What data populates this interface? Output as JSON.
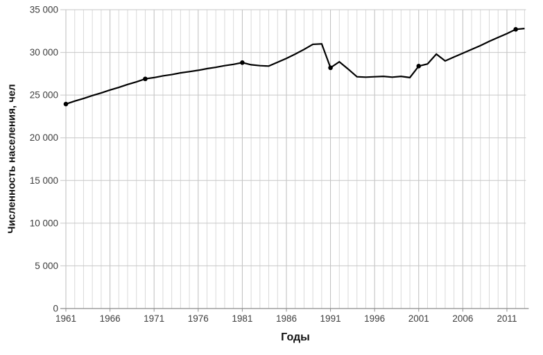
{
  "chart_data": {
    "type": "line",
    "title": "",
    "xlabel": "Годы",
    "ylabel": "Численность населения, чел",
    "xlim": [
      1961,
      2013
    ],
    "ylim": [
      0,
      35000
    ],
    "grid": true,
    "legend": "none",
    "x_ticks": [
      1961,
      1966,
      1971,
      1976,
      1981,
      1986,
      1991,
      1996,
      2001,
      2006,
      2011
    ],
    "y_ticks": [
      0,
      5000,
      10000,
      15000,
      20000,
      25000,
      30000,
      35000
    ],
    "y_tick_labels": [
      "0",
      "5 000",
      "10 000",
      "15 000",
      "20 000",
      "25 000",
      "30 000",
      "35 000"
    ],
    "series": [
      {
        "name": "Численность населения",
        "x": [
          1961,
          1962,
          1963,
          1964,
          1965,
          1966,
          1967,
          1968,
          1969,
          1970,
          1971,
          1972,
          1973,
          1974,
          1975,
          1976,
          1977,
          1978,
          1979,
          1980,
          1981,
          1982,
          1983,
          1984,
          1985,
          1986,
          1987,
          1988,
          1989,
          1990,
          1991,
          1992,
          1993,
          1994,
          1995,
          1996,
          1997,
          1998,
          1999,
          2000,
          2001,
          2002,
          2003,
          2004,
          2005,
          2006,
          2007,
          2008,
          2009,
          2010,
          2011,
          2012,
          2013
        ],
        "y": [
          23950,
          24300,
          24600,
          24950,
          25250,
          25600,
          25900,
          26250,
          26550,
          26900,
          27050,
          27250,
          27400,
          27600,
          27750,
          27900,
          28100,
          28250,
          28450,
          28600,
          28800,
          28550,
          28450,
          28400,
          28850,
          29300,
          29800,
          30350,
          30950,
          31000,
          28200,
          28900,
          28050,
          27150,
          27100,
          27150,
          27200,
          27100,
          27200,
          27050,
          28400,
          28650,
          29800,
          29000,
          29450,
          29900,
          30350,
          30800,
          31300,
          31750,
          32200,
          32700,
          32800
        ]
      }
    ],
    "marker_years": [
      1961,
      1970,
      1981,
      1991,
      2001,
      2012
    ],
    "line_color": "#000000",
    "marker_color": "#000000",
    "grid_color_minor": "#d9d9d9",
    "grid_color_major": "#bdbdbd",
    "hgrid_color": "#c6c6c6",
    "axis_color": "#8c8c8c",
    "tick_label_color": "#3d3d3d"
  }
}
